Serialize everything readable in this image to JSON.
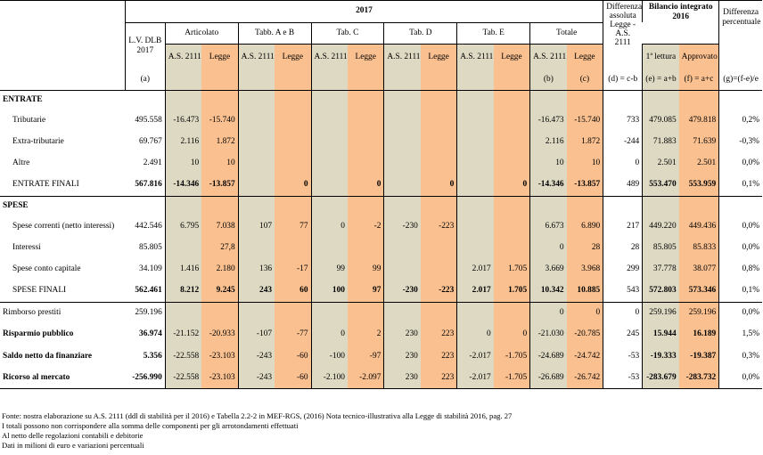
{
  "header": {
    "year": "2017",
    "lv": "L.V. DLB 2017",
    "articolato": "Articolato",
    "tabbAB": "Tabb. A e B",
    "tabC": "Tab. C",
    "tabD": "Tab. D",
    "tabE": "Tab. E",
    "totale": "Totale",
    "diff_ass": "Differenza assoluta Legge - A.S. 2111",
    "bilancio": "Bilancio integrato 2016",
    "lettura": "1ª lettura",
    "approvato": "Approvato",
    "diff_perc": "Differenza percentuale",
    "as2111": "A.S. 2111",
    "legge": "Legge",
    "keys": {
      "a": "(a)",
      "b": "(b)",
      "c": "(c)",
      "d": "(d) = c-b",
      "e": "(e) = a+b",
      "f": "(f) = a+c",
      "g": "(g)=(f-e)/e"
    }
  },
  "sections": {
    "entrate": "ENTRATE",
    "spese": "SPESE"
  },
  "rows": [
    {
      "label": "Tributarie",
      "indent": true,
      "bold": false,
      "lv": "495.558",
      "art_as": "-16.473",
      "art_l": "-15.740",
      "ab_as": "",
      "ab_l": "",
      "c_as": "",
      "c_l": "",
      "d_as": "",
      "d_l": "",
      "e_as": "",
      "e_l": "",
      "tot_as": "-16.473",
      "tot_l": "-15.740",
      "diff": "733",
      "e": "479.085",
      "f": "479.818",
      "g": "0,2%"
    },
    {
      "label": "Extra-tributarie",
      "indent": true,
      "bold": false,
      "lv": "69.767",
      "art_as": "2.116",
      "art_l": "1.872",
      "ab_as": "",
      "ab_l": "",
      "c_as": "",
      "c_l": "",
      "d_as": "",
      "d_l": "",
      "e_as": "",
      "e_l": "",
      "tot_as": "2.116",
      "tot_l": "1.872",
      "diff": "-244",
      "e": "71.883",
      "f": "71.639",
      "g": "-0,3%"
    },
    {
      "label": "Altre",
      "indent": true,
      "bold": false,
      "lv": "2.491",
      "art_as": "10",
      "art_l": "10",
      "ab_as": "",
      "ab_l": "",
      "c_as": "",
      "c_l": "",
      "d_as": "",
      "d_l": "",
      "e_as": "",
      "e_l": "",
      "tot_as": "10",
      "tot_l": "10",
      "diff": "0",
      "e": "2.501",
      "f": "2.501",
      "g": "0,0%"
    },
    {
      "label": "ENTRATE FINALI",
      "indent": true,
      "bold": false,
      "total": true,
      "lv": "567.816",
      "art_as": "-14.346",
      "art_l": "-13.857",
      "ab_as": "",
      "ab_l": "0",
      "c_as": "",
      "c_l": "0",
      "d_as": "",
      "d_l": "0",
      "e_as": "",
      "e_l": "0",
      "tot_as": "-14.346",
      "tot_l": "-13.857",
      "diff": "489",
      "e": "553.470",
      "f": "553.959",
      "g": "0,1%"
    },
    {
      "label": "Spese correnti (netto interessi)",
      "indent": true,
      "bold": false,
      "lv": "442.546",
      "art_as": "6.795",
      "art_l": "7.038",
      "ab_as": "107",
      "ab_l": "77",
      "c_as": "0",
      "c_l": "-2",
      "d_as": "-230",
      "d_l": "-223",
      "e_as": "",
      "e_l": "",
      "tot_as": "6.673",
      "tot_l": "6.890",
      "diff": "217",
      "e": "449.220",
      "f": "449.436",
      "g": "0,0%"
    },
    {
      "label": "Interessi",
      "indent": true,
      "bold": false,
      "lv": "85.805",
      "art_as": "",
      "art_l": "27,8",
      "ab_as": "",
      "ab_l": "",
      "c_as": "",
      "c_l": "",
      "d_as": "",
      "d_l": "",
      "e_as": "",
      "e_l": "",
      "tot_as": "0",
      "tot_l": "28",
      "diff": "28",
      "e": "85.805",
      "f": "85.833",
      "g": "0,0%"
    },
    {
      "label": "Spese conto capitale",
      "indent": true,
      "bold": false,
      "lv": "34.109",
      "art_as": "1.416",
      "art_l": "2.180",
      "ab_as": "136",
      "ab_l": "-17",
      "c_as": "99",
      "c_l": "99",
      "d_as": "",
      "d_l": "",
      "e_as": "2.017",
      "e_l": "1.705",
      "tot_as": "3.669",
      "tot_l": "3.968",
      "diff": "299",
      "e": "37.778",
      "f": "38.077",
      "g": "0,8%"
    },
    {
      "label": "SPESE FINALI",
      "indent": true,
      "bold": false,
      "total": true,
      "lv": "562.461",
      "art_as": "8.212",
      "art_l": "9.245",
      "ab_as": "243",
      "ab_l": "60",
      "c_as": "100",
      "c_l": "97",
      "d_as": "-230",
      "d_l": "-223",
      "e_as": "2.017",
      "e_l": "1.705",
      "tot_as": "10.342",
      "tot_l": "10.885",
      "diff": "543",
      "e": "572.803",
      "f": "573.346",
      "g": "0,1%"
    },
    {
      "label": "Rimborso prestiti",
      "indent": false,
      "bold": false,
      "lv": "259.196",
      "art_as": "",
      "art_l": "",
      "ab_as": "",
      "ab_l": "",
      "c_as": "",
      "c_l": "",
      "d_as": "",
      "d_l": "",
      "e_as": "",
      "e_l": "",
      "tot_as": "0",
      "tot_l": "0",
      "diff": "0",
      "e": "259.196",
      "f": "259.196",
      "g": "0,0%"
    },
    {
      "label": "Risparmio pubblico",
      "indent": false,
      "bold": true,
      "lv": "36.974",
      "art_as": "-21.152",
      "art_l": "-20.933",
      "ab_as": "-107",
      "ab_l": "-77",
      "c_as": "0",
      "c_l": "2",
      "d_as": "230",
      "d_l": "223",
      "e_as": "0",
      "e_l": "0",
      "tot_as": "-21.030",
      "tot_l": "-20.785",
      "diff": "245",
      "e": "15.944",
      "f": "16.189",
      "g": "1,5%"
    },
    {
      "label": "Saldo netto da finanziare",
      "indent": false,
      "bold": true,
      "lv": "5.356",
      "art_as": "-22.558",
      "art_l": "-23.103",
      "ab_as": "-243",
      "ab_l": "-60",
      "c_as": "-100",
      "c_l": "-97",
      "d_as": "230",
      "d_l": "223",
      "e_as": "-2.017",
      "e_l": "-1.705",
      "tot_as": "-24.689",
      "tot_l": "-24.742",
      "diff": "-53",
      "e": "-19.333",
      "f": "-19.387",
      "g": "0,3%"
    },
    {
      "label": "Ricorso al mercato",
      "indent": false,
      "bold": true,
      "lv": "-256.990",
      "art_as": "-22.558",
      "art_l": "-23.103",
      "ab_as": "-243",
      "ab_l": "-60",
      "c_as": "-2.100",
      "c_l": "-2.097",
      "d_as": "230",
      "d_l": "223",
      "e_as": "-2.017",
      "e_l": "-1.705",
      "tot_as": "-26.689",
      "tot_l": "-26.742",
      "diff": "-53",
      "e": "-283.679",
      "f": "-283.732",
      "g": "0,0%"
    }
  ],
  "footnotes": [
    "Fonte: nostra elaborazione su A.S. 2111 (ddl di stabilità per il 2016) e Tabella 2.2-2 in MEF-RGS, (2016) Nota tecnico-illustrativa alla Legge di stabilità 2016, pag. 27",
    "I totali possono non corrispondere alla somma delle componenti per gli arrotondamenti effettuati",
    "Al netto delle regolazioni contabili e debitorie",
    "Dati in milioni di euro e variazioni percentuali"
  ],
  "colors": {
    "as2111": "#ddd9c3",
    "legge": "#fac090"
  }
}
